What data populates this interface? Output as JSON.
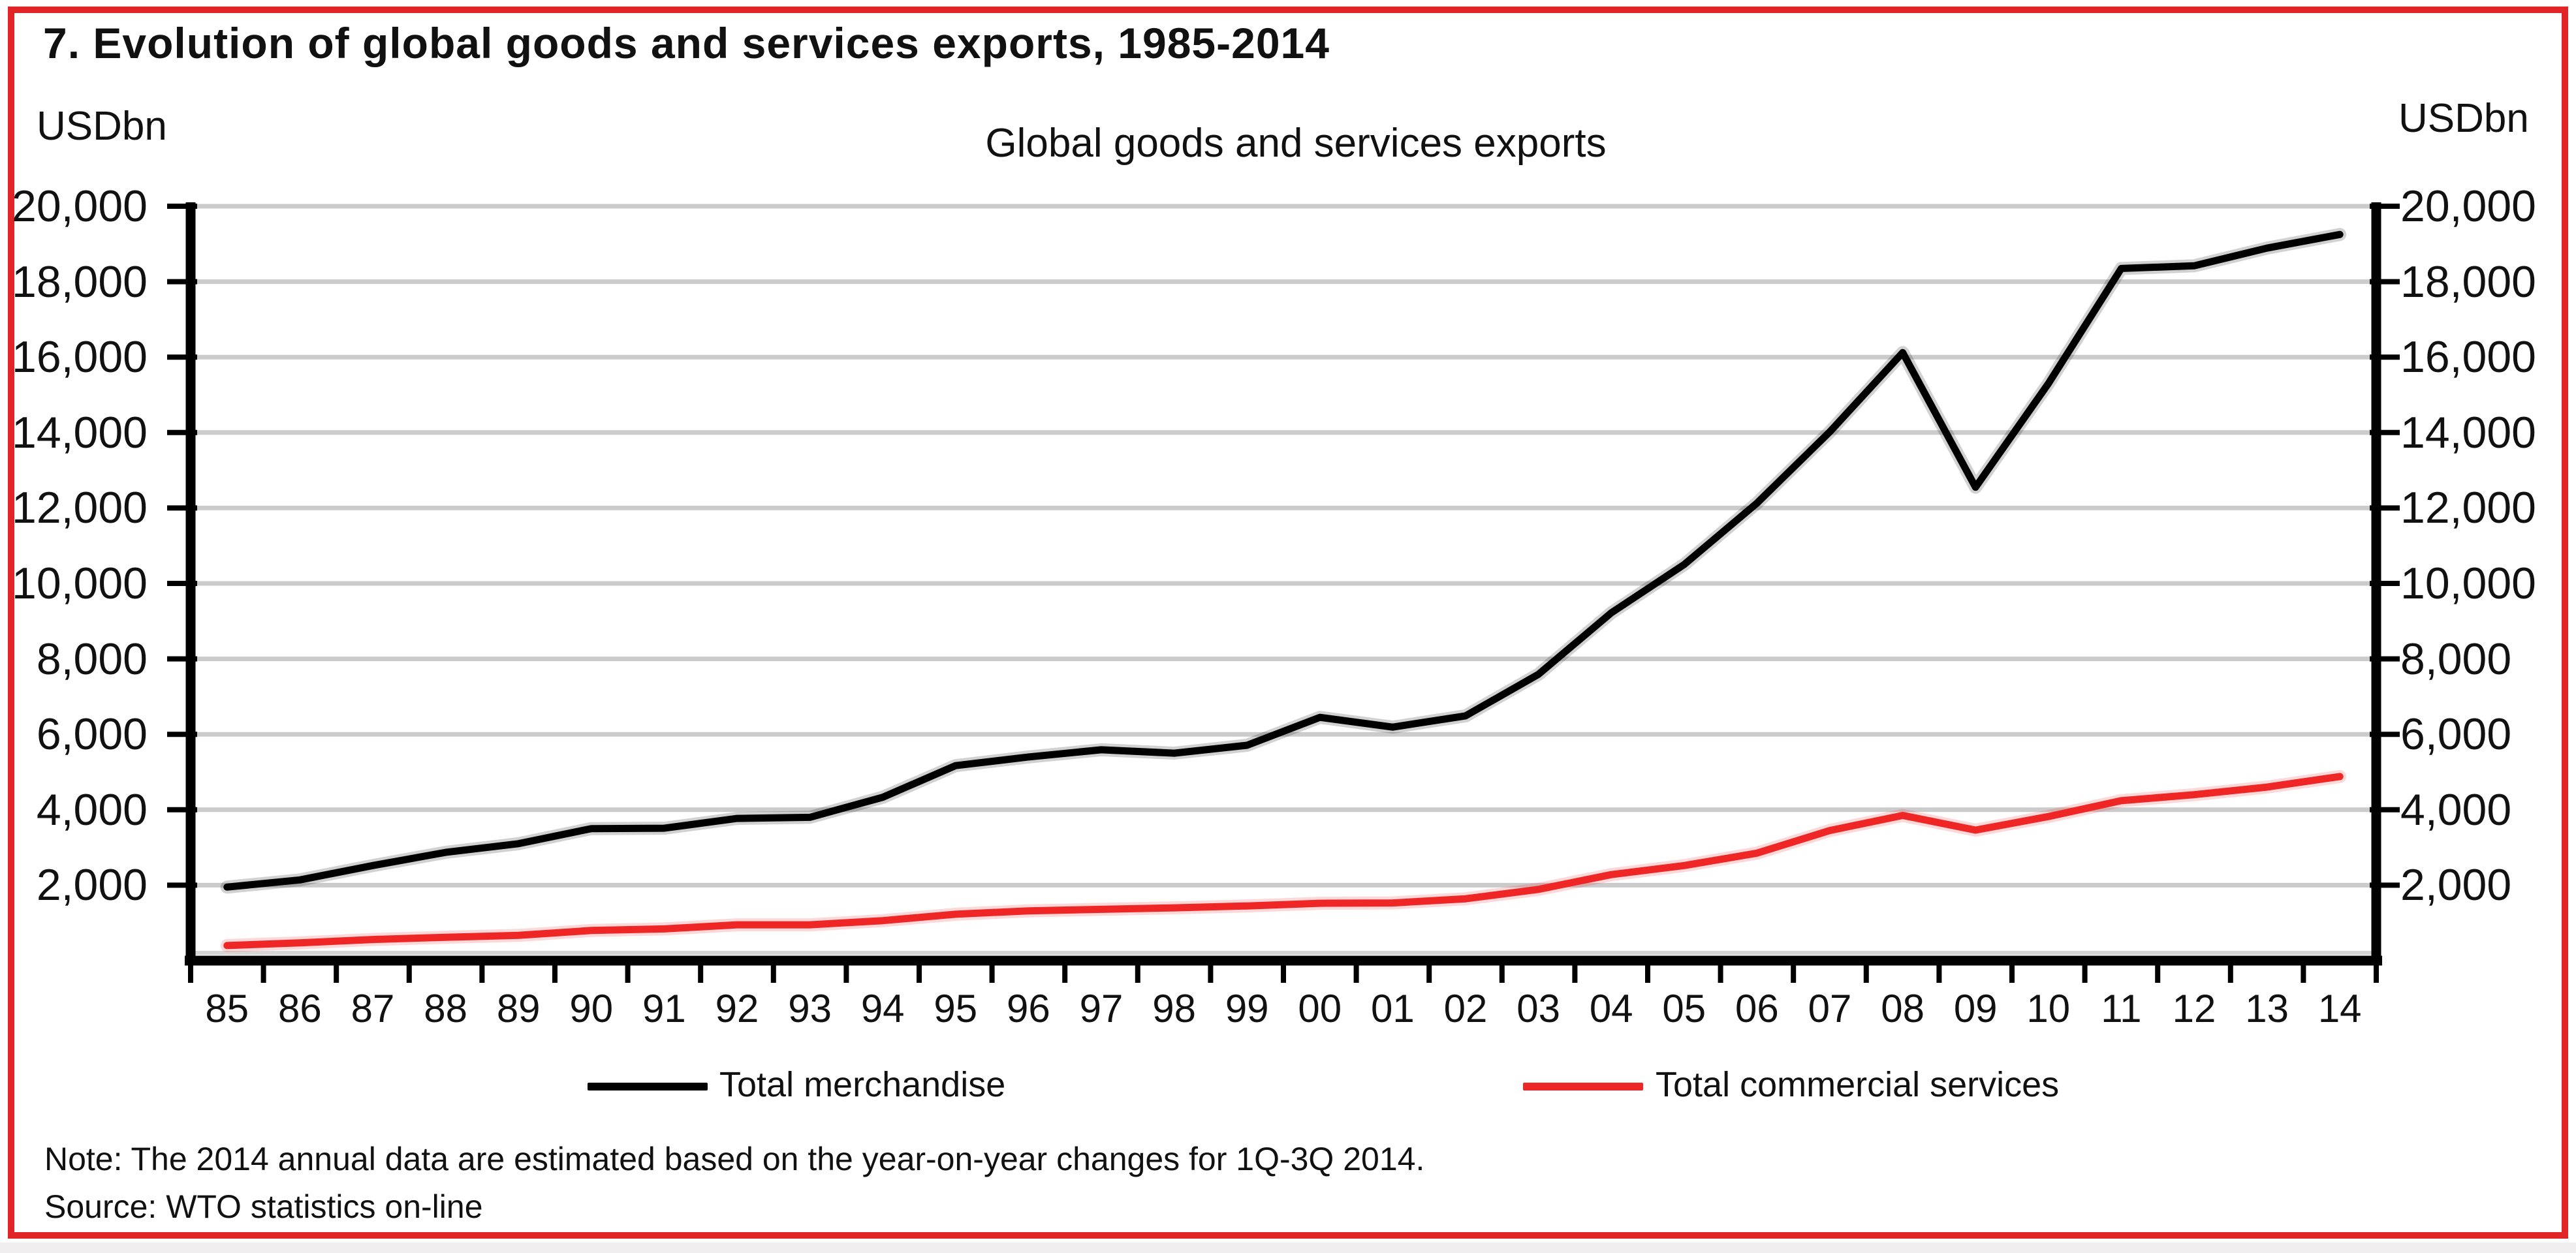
{
  "header": {
    "title": "7. Evolution of global goods and services exports, 1985-2014"
  },
  "axis_units": {
    "left": "USDbn",
    "right": "USDbn"
  },
  "chart_data": {
    "type": "line",
    "title": "Global goods and services exports",
    "categories": [
      "85",
      "86",
      "87",
      "88",
      "89",
      "90",
      "91",
      "92",
      "93",
      "94",
      "95",
      "96",
      "97",
      "98",
      "99",
      "00",
      "01",
      "02",
      "03",
      "04",
      "05",
      "06",
      "07",
      "08",
      "09",
      "10",
      "11",
      "12",
      "13",
      "14"
    ],
    "series": [
      {
        "name": "Total merchandise",
        "color": "#000000",
        "values": [
          1950,
          2140,
          2520,
          2870,
          3100,
          3500,
          3510,
          3770,
          3800,
          4330,
          5170,
          5400,
          5590,
          5500,
          5710,
          6450,
          6190,
          6490,
          7590,
          9220,
          10500,
          12130,
          14020,
          16120,
          12550,
          15300,
          18350,
          18420,
          18890,
          19250
        ]
      },
      {
        "name": "Total commercial services",
        "color": "#ee2626",
        "values": [
          400,
          470,
          560,
          620,
          670,
          800,
          840,
          950,
          950,
          1060,
          1230,
          1320,
          1360,
          1400,
          1450,
          1520,
          1530,
          1640,
          1890,
          2280,
          2520,
          2850,
          3450,
          3850,
          3460,
          3820,
          4240,
          4400,
          4600,
          4880
        ]
      }
    ],
    "xlabel": "",
    "ylabel": "USDbn",
    "ylim": [
      0,
      20000
    ],
    "ytick_interval": 2000,
    "ytick_labels": [
      "2,000",
      "4,000",
      "6,000",
      "8,000",
      "10,000",
      "12,000",
      "14,000",
      "16,000",
      "18,000",
      "20,000"
    ],
    "grid": "horizontal",
    "legend_position": "bottom"
  },
  "footer": {
    "note": "Note: The 2014 annual data are estimated based on the year-on-year changes for 1Q-3Q 2014.",
    "source": "Source: WTO statistics on-line"
  },
  "colors": {
    "frame_border": "#e02428",
    "gridline": "#cbcbcb",
    "axis": "#000000",
    "text": "#111111"
  }
}
